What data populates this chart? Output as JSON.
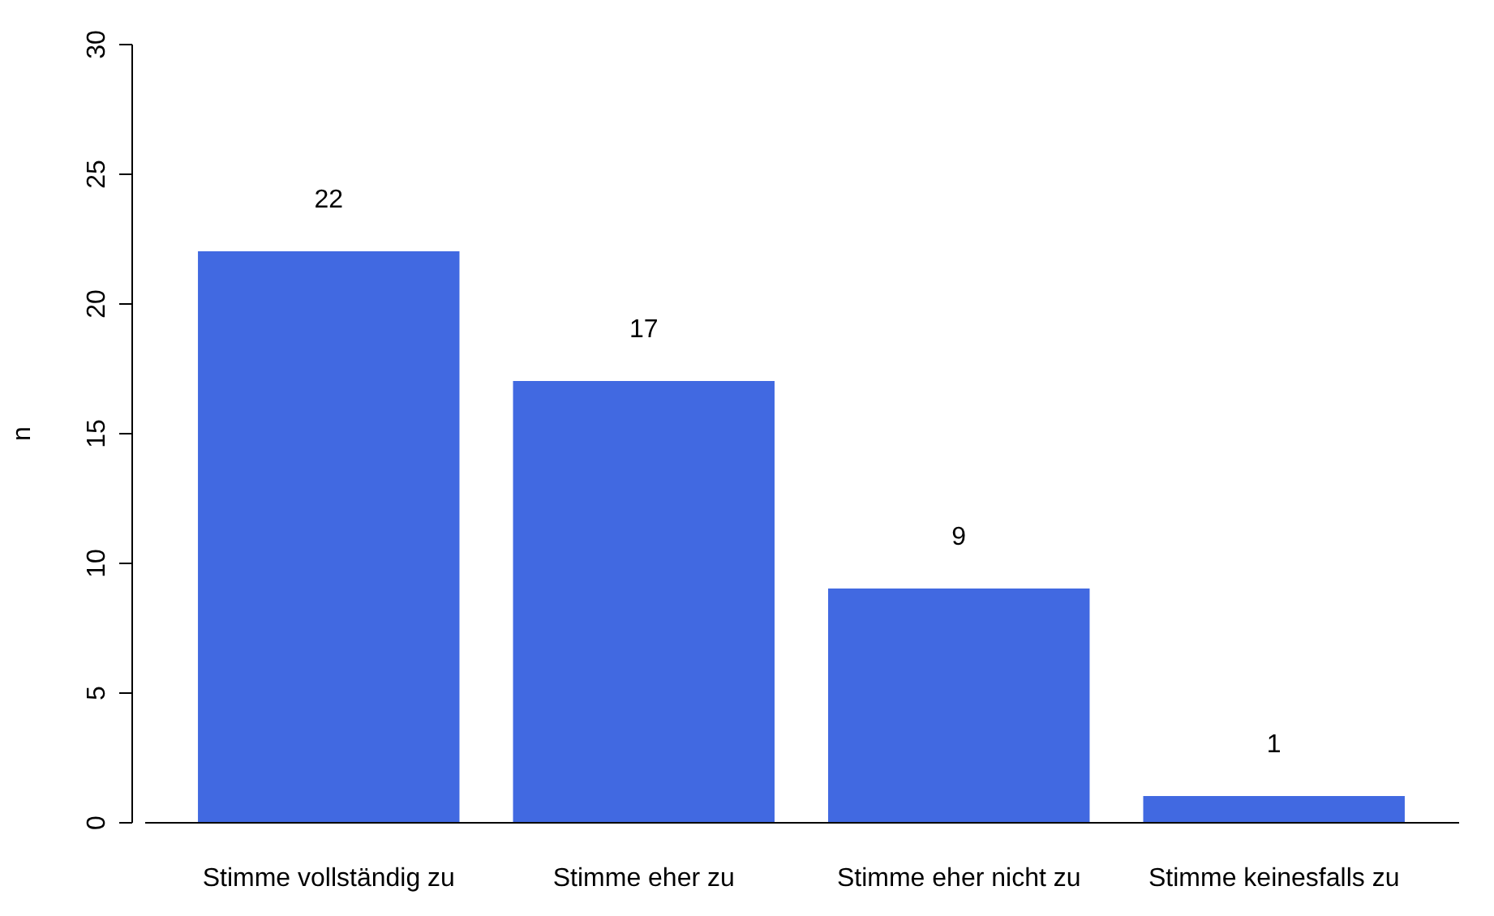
{
  "chart_data": {
    "type": "bar",
    "ylabel": "n",
    "categories": [
      "Stimme vollständig zu",
      "Stimme eher zu",
      "Stimme eher nicht zu",
      "Stimme keinesfalls zu"
    ],
    "values": [
      22,
      17,
      9,
      1
    ],
    "color": "#4169e1",
    "ylim": [
      0,
      30
    ],
    "yticks": [
      0,
      5,
      10,
      15,
      20,
      25,
      30
    ],
    "data_labels": true,
    "grid": false
  }
}
